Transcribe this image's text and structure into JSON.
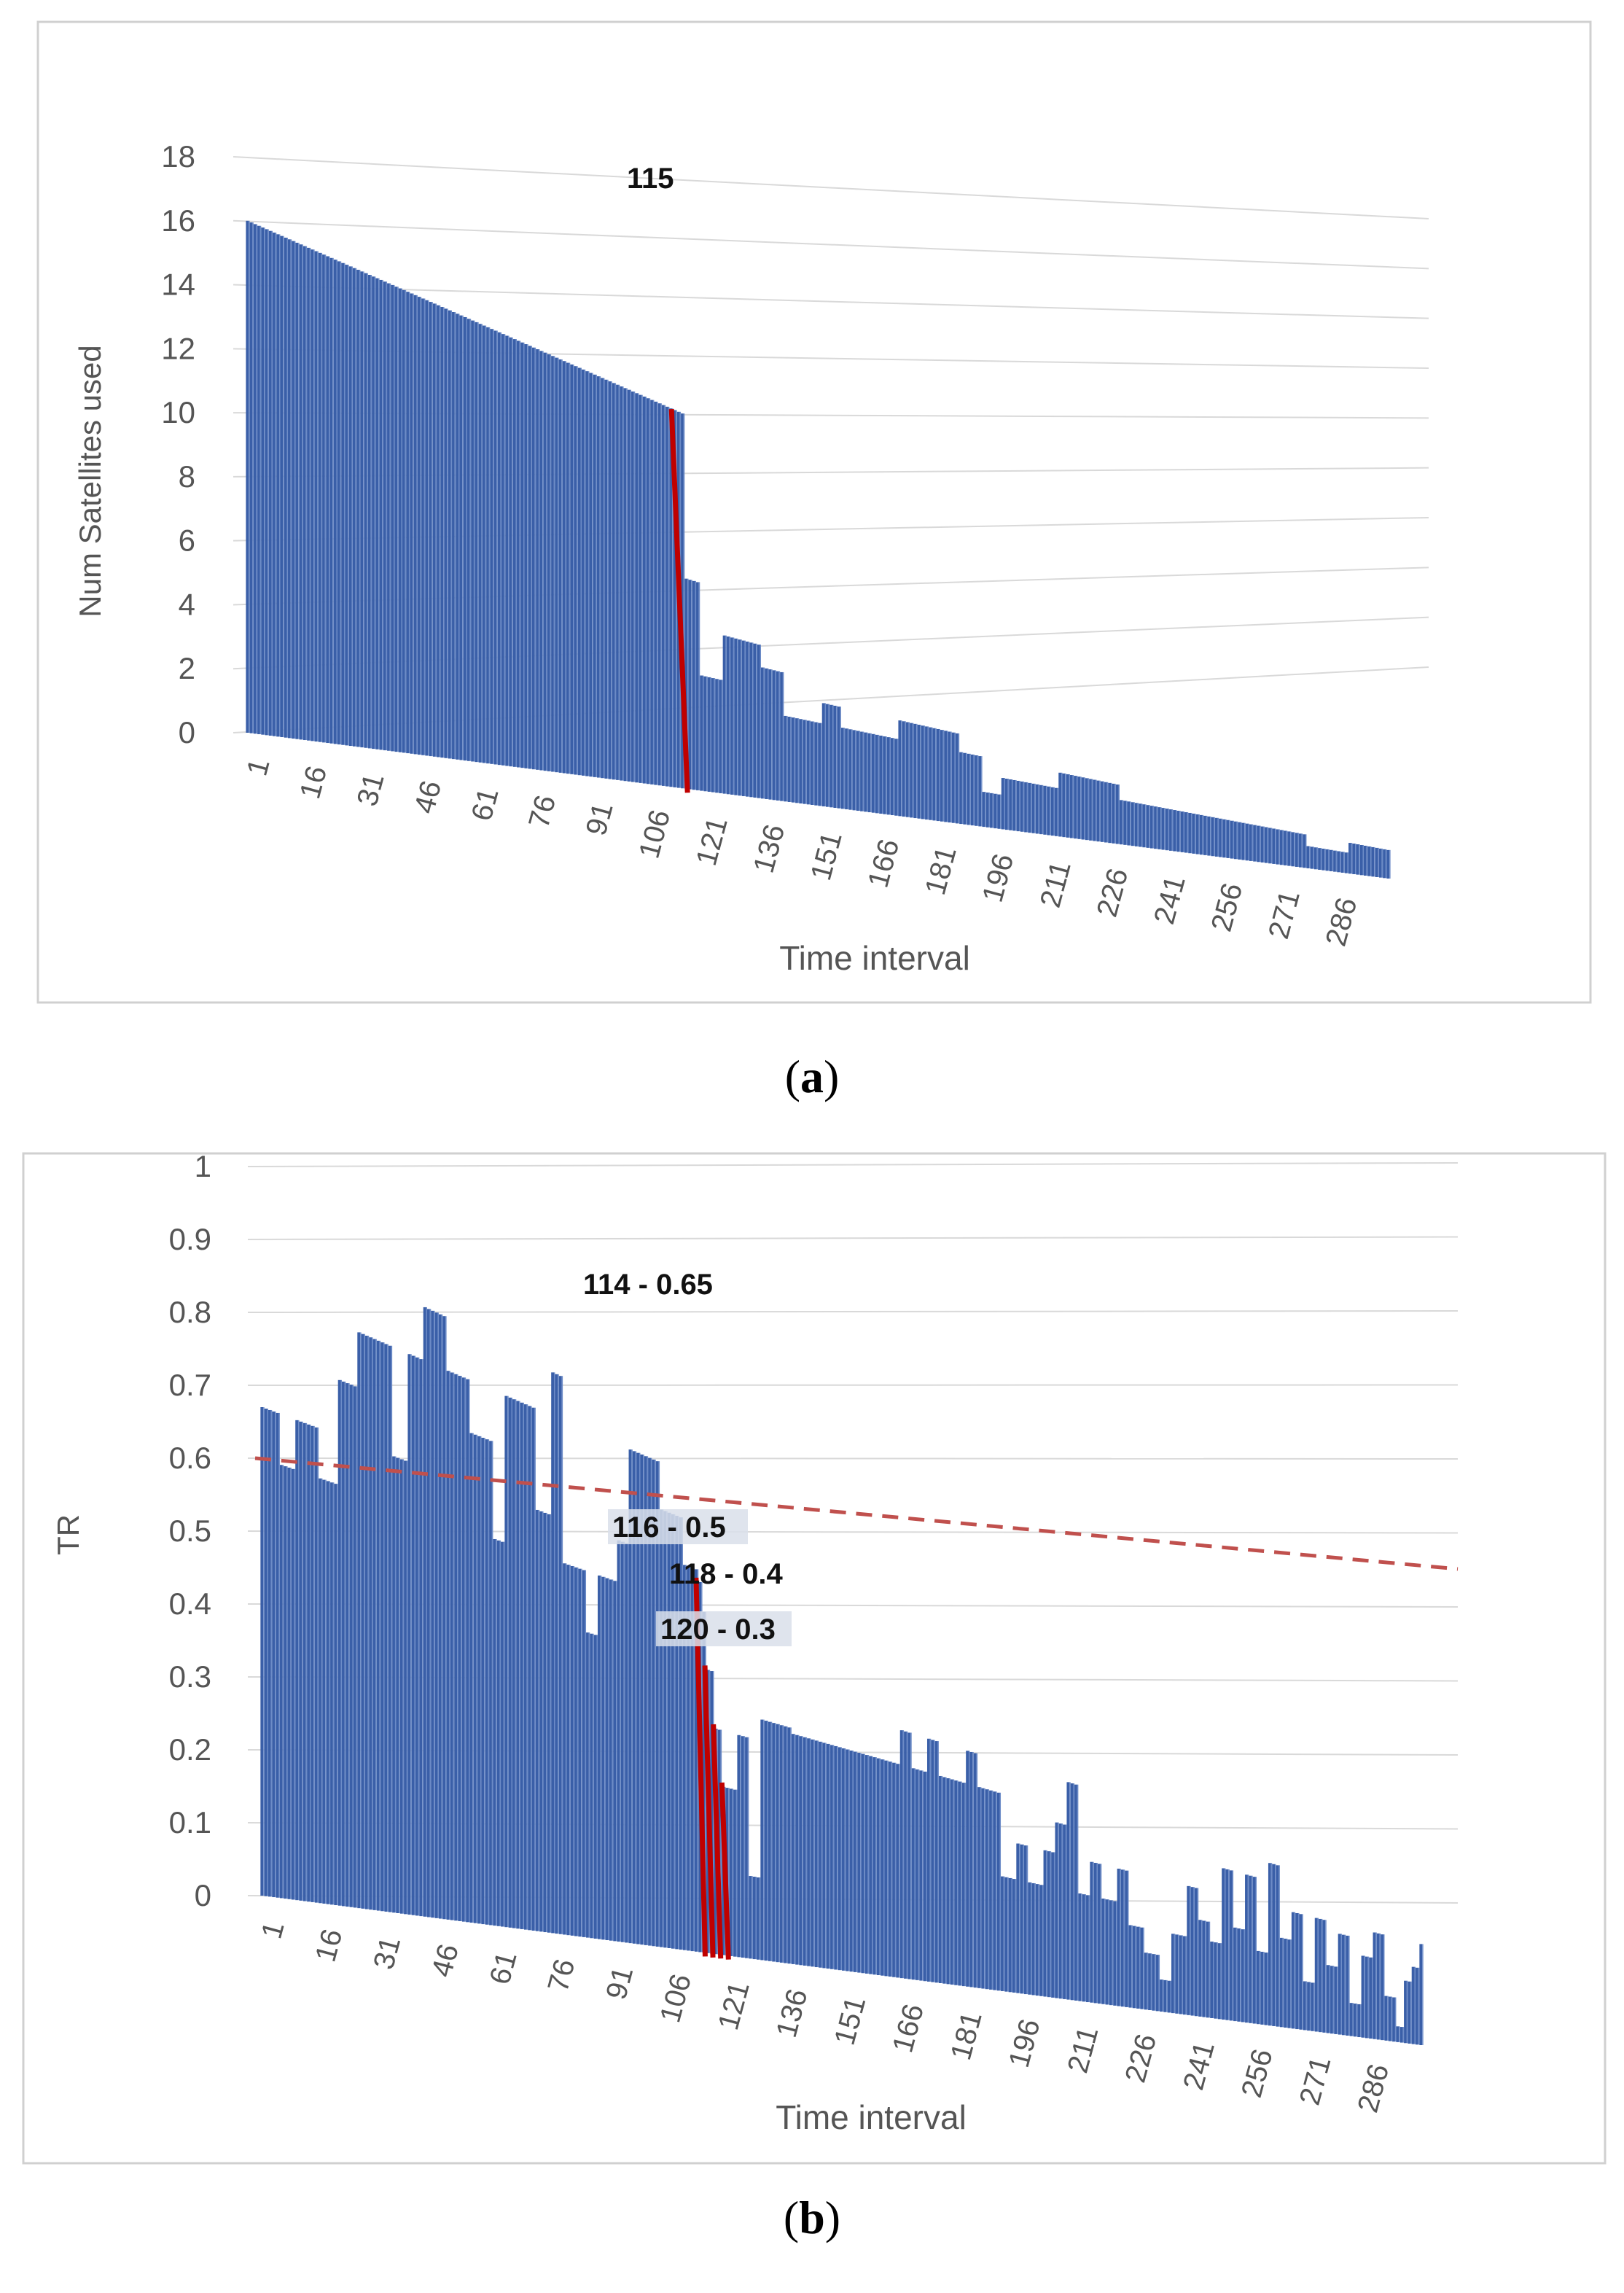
{
  "chart_data": [
    {
      "type": "bar",
      "panel_label": "a",
      "title": "",
      "xlabel": "Time interval",
      "ylabel": "Num Satellites used",
      "ylim": [
        0,
        18
      ],
      "yticks": [
        "0",
        "2",
        "4",
        "6",
        "8",
        "10",
        "12",
        "14",
        "16",
        "18"
      ],
      "xticks": [
        "1",
        "16",
        "31",
        "46",
        "61",
        "76",
        "91",
        "106",
        "121",
        "136",
        "151",
        "166",
        "181",
        "196",
        "211",
        "226",
        "241",
        "256",
        "271",
        "286"
      ],
      "n_points": 300,
      "segments": [
        {
          "from": 1,
          "to": 115,
          "value": 16
        },
        {
          "from": 116,
          "to": 119,
          "value": 9
        },
        {
          "from": 120,
          "to": 125,
          "value": 5
        },
        {
          "from": 126,
          "to": 135,
          "value": 7
        },
        {
          "from": 136,
          "to": 141,
          "value": 6
        },
        {
          "from": 142,
          "to": 151,
          "value": 4
        },
        {
          "from": 152,
          "to": 156,
          "value": 5
        },
        {
          "from": 157,
          "to": 171,
          "value": 4
        },
        {
          "from": 172,
          "to": 187,
          "value": 5
        },
        {
          "from": 188,
          "to": 193,
          "value": 4
        },
        {
          "from": 194,
          "to": 198,
          "value": 2
        },
        {
          "from": 199,
          "to": 213,
          "value": 3
        },
        {
          "from": 214,
          "to": 229,
          "value": 4
        },
        {
          "from": 230,
          "to": 278,
          "value": 3
        },
        {
          "from": 279,
          "to": 289,
          "value": 2
        },
        {
          "from": 290,
          "to": 300,
          "value": 3
        }
      ],
      "annotations": [
        {
          "x": 115,
          "value": 16,
          "label": "115"
        }
      ],
      "grid": true,
      "bar_color": "#3a5fa8",
      "marker_color": "#c00000"
    },
    {
      "type": "bar",
      "panel_label": "b",
      "title": "",
      "xlabel": "Time interval",
      "ylabel": "TR",
      "ylim": [
        0,
        1
      ],
      "yticks": [
        "0",
        "0.1",
        "0.2",
        "0.3",
        "0.4",
        "0.5",
        "0.6",
        "0.7",
        "0.8",
        "0.9",
        "1"
      ],
      "xticks": [
        "1",
        "16",
        "31",
        "46",
        "61",
        "76",
        "91",
        "106",
        "121",
        "136",
        "151",
        "166",
        "181",
        "196",
        "211",
        "226",
        "241",
        "256",
        "271",
        "286"
      ],
      "n_points": 300,
      "segments": [
        {
          "from": 1,
          "to": 5,
          "value": 0.67
        },
        {
          "from": 6,
          "to": 9,
          "value": 0.6
        },
        {
          "from": 10,
          "to": 15,
          "value": 0.67
        },
        {
          "from": 16,
          "to": 20,
          "value": 0.6
        },
        {
          "from": 21,
          "to": 25,
          "value": 0.75
        },
        {
          "from": 26,
          "to": 34,
          "value": 0.83
        },
        {
          "from": 35,
          "to": 38,
          "value": 0.67
        },
        {
          "from": 39,
          "to": 42,
          "value": 0.83
        },
        {
          "from": 43,
          "to": 48,
          "value": 0.91
        },
        {
          "from": 49,
          "to": 54,
          "value": 0.83
        },
        {
          "from": 55,
          "to": 60,
          "value": 0.75
        },
        {
          "from": 61,
          "to": 63,
          "value": 0.6
        },
        {
          "from": 64,
          "to": 71,
          "value": 0.83
        },
        {
          "from": 72,
          "to": 75,
          "value": 0.67
        },
        {
          "from": 76,
          "to": 78,
          "value": 0.9
        },
        {
          "from": 79,
          "to": 84,
          "value": 0.6
        },
        {
          "from": 85,
          "to": 87,
          "value": 0.5
        },
        {
          "from": 88,
          "to": 92,
          "value": 0.6
        },
        {
          "from": 93,
          "to": 95,
          "value": 0.67
        },
        {
          "from": 96,
          "to": 103,
          "value": 0.83
        },
        {
          "from": 104,
          "to": 109,
          "value": 0.75
        },
        {
          "from": 110,
          "to": 113,
          "value": 0.67
        },
        {
          "from": 114,
          "to": 114,
          "value": 0.65
        },
        {
          "from": 115,
          "to": 115,
          "value": 0.6
        },
        {
          "from": 116,
          "to": 117,
          "value": 0.5
        },
        {
          "from": 118,
          "to": 119,
          "value": 0.4
        },
        {
          "from": 120,
          "to": 123,
          "value": 0.3
        },
        {
          "from": 124,
          "to": 126,
          "value": 0.4
        },
        {
          "from": 127,
          "to": 129,
          "value": 0.15
        },
        {
          "from": 130,
          "to": 137,
          "value": 0.44
        },
        {
          "from": 138,
          "to": 165,
          "value": 0.43
        },
        {
          "from": 166,
          "to": 168,
          "value": 0.5
        },
        {
          "from": 169,
          "to": 172,
          "value": 0.43
        },
        {
          "from": 173,
          "to": 175,
          "value": 0.5
        },
        {
          "from": 176,
          "to": 182,
          "value": 0.43
        },
        {
          "from": 183,
          "to": 185,
          "value": 0.5
        },
        {
          "from": 186,
          "to": 191,
          "value": 0.43
        },
        {
          "from": 192,
          "to": 195,
          "value": 0.25
        },
        {
          "from": 196,
          "to": 198,
          "value": 0.33
        },
        {
          "from": 199,
          "to": 202,
          "value": 0.25
        },
        {
          "from": 203,
          "to": 205,
          "value": 0.33
        },
        {
          "from": 206,
          "to": 208,
          "value": 0.4
        },
        {
          "from": 209,
          "to": 211,
          "value": 0.5
        },
        {
          "from": 212,
          "to": 214,
          "value": 0.25
        },
        {
          "from": 215,
          "to": 217,
          "value": 0.33
        },
        {
          "from": 218,
          "to": 221,
          "value": 0.25
        },
        {
          "from": 222,
          "to": 224,
          "value": 0.33
        },
        {
          "from": 225,
          "to": 228,
          "value": 0.2
        },
        {
          "from": 229,
          "to": 232,
          "value": 0.14
        },
        {
          "from": 233,
          "to": 235,
          "value": 0.08
        },
        {
          "from": 236,
          "to": 239,
          "value": 0.2
        },
        {
          "from": 240,
          "to": 242,
          "value": 0.33
        },
        {
          "from": 243,
          "to": 245,
          "value": 0.25
        },
        {
          "from": 246,
          "to": 248,
          "value": 0.2
        },
        {
          "from": 249,
          "to": 251,
          "value": 0.4
        },
        {
          "from": 252,
          "to": 254,
          "value": 0.25
        },
        {
          "from": 255,
          "to": 257,
          "value": 0.4
        },
        {
          "from": 258,
          "to": 260,
          "value": 0.2
        },
        {
          "from": 261,
          "to": 263,
          "value": 0.45
        },
        {
          "from": 264,
          "to": 266,
          "value": 0.25
        },
        {
          "from": 267,
          "to": 269,
          "value": 0.33
        },
        {
          "from": 270,
          "to": 272,
          "value": 0.14
        },
        {
          "from": 273,
          "to": 275,
          "value": 0.33
        },
        {
          "from": 276,
          "to": 278,
          "value": 0.2
        },
        {
          "from": 279,
          "to": 281,
          "value": 0.3
        },
        {
          "from": 282,
          "to": 284,
          "value": 0.1
        },
        {
          "from": 285,
          "to": 287,
          "value": 0.25
        },
        {
          "from": 288,
          "to": 290,
          "value": 0.33
        },
        {
          "from": 291,
          "to": 293,
          "value": 0.14
        },
        {
          "from": 294,
          "to": 295,
          "value": 0.05
        },
        {
          "from": 296,
          "to": 297,
          "value": 0.2
        },
        {
          "from": 298,
          "to": 299,
          "value": 0.25
        },
        {
          "from": 300,
          "to": 300,
          "value": 0.33
        }
      ],
      "threshold": {
        "value": 0.6,
        "style": "dashed"
      },
      "annotations": [
        {
          "x": 114,
          "value": 0.65,
          "label": "114 - 0.65"
        },
        {
          "x": 116,
          "value": 0.5,
          "label": "116 - 0.5"
        },
        {
          "x": 118,
          "value": 0.4,
          "label": "118 - 0.4"
        },
        {
          "x": 120,
          "value": 0.3,
          "label": "120 - 0.3"
        }
      ],
      "grid": true,
      "bar_color": "#3a5fa8",
      "marker_color": "#c00000"
    }
  ]
}
